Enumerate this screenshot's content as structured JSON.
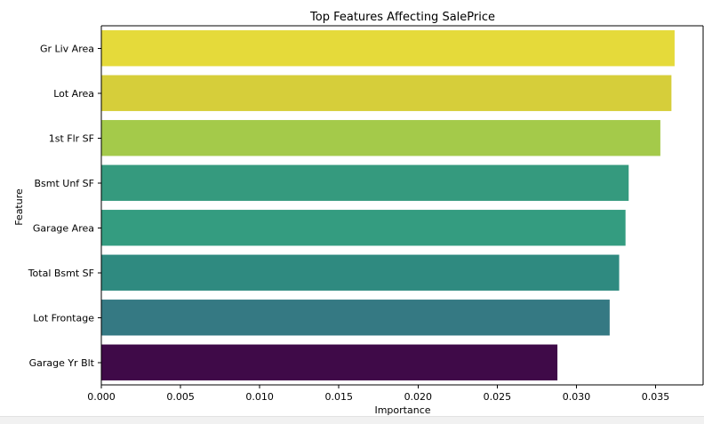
{
  "chart_data": {
    "type": "bar",
    "orientation": "horizontal",
    "title": "Top Features Affecting SalePrice",
    "xlabel": "Importance",
    "ylabel": "Feature",
    "xlim": [
      0.0,
      0.038
    ],
    "x_ticks": [
      "0.000",
      "0.005",
      "0.010",
      "0.015",
      "0.020",
      "0.025",
      "0.030",
      "0.035"
    ],
    "grid": false,
    "legend": "none",
    "categories": [
      "Gr Liv Area",
      "Lot Area",
      "1st Flr SF",
      "Bsmt Unf SF",
      "Garage Area",
      "Total Bsmt SF",
      "Lot Frontage",
      "Garage Yr Blt"
    ],
    "values": [
      0.0362,
      0.036,
      0.0353,
      0.0333,
      0.0331,
      0.0327,
      0.0321,
      0.0288
    ],
    "colors": [
      "#e5da3a",
      "#d6ce3a",
      "#a4ca4a",
      "#359a7e",
      "#349c80",
      "#2f8a80",
      "#357983",
      "#3f0a48"
    ]
  }
}
